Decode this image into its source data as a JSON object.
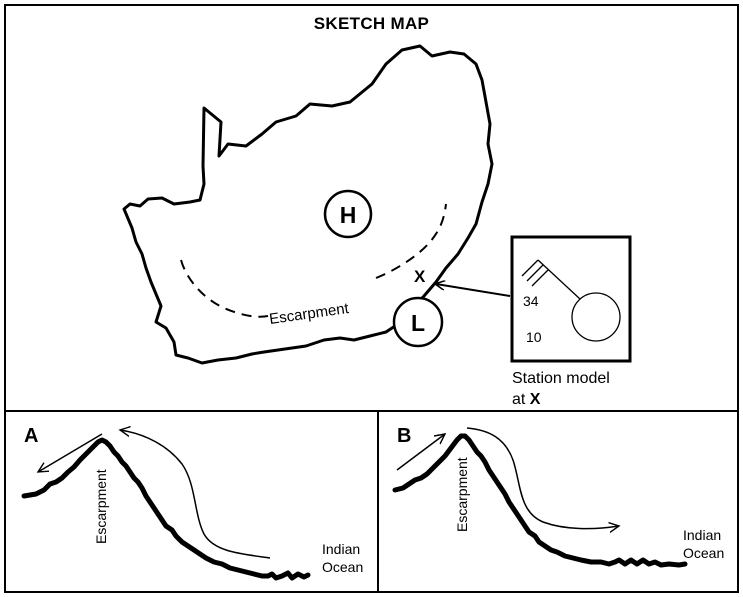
{
  "map": {
    "title": "SKETCH MAP",
    "high_pressure": "H",
    "low_pressure": "L",
    "point_label": "X",
    "escarpment_label": "Escarpment",
    "station_model": {
      "temperature": "34",
      "dew_point": "10",
      "caption_line1": "Station model",
      "caption_line2_prefix": "at ",
      "caption_line2_bold": "X"
    }
  },
  "diagram_a": {
    "letter": "A",
    "escarpment_label": "Escarpment",
    "ocean_line1": "Indian",
    "ocean_line2": "Ocean"
  },
  "diagram_b": {
    "letter": "B",
    "escarpment_label": "Escarpment",
    "ocean_line1": "Indian",
    "ocean_line2": "Ocean"
  }
}
